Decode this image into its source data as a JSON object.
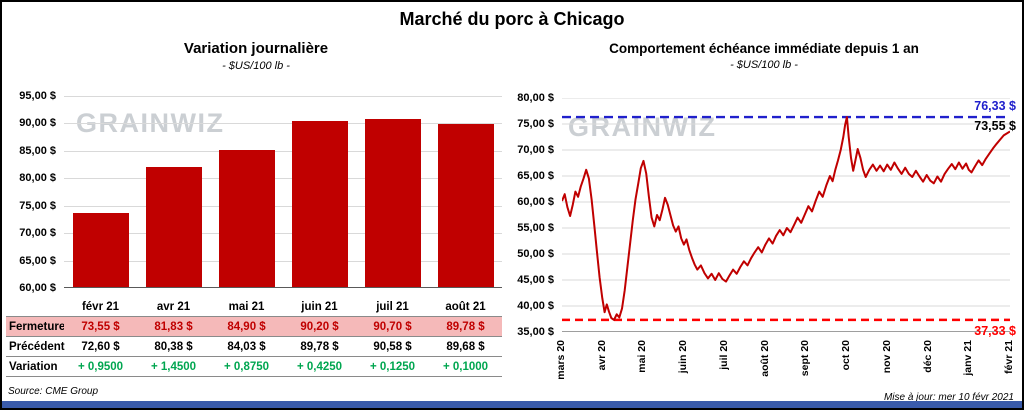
{
  "page": {
    "title": "Marché du porc à Chicago",
    "source": "Source: CME Group",
    "updated": "Mise à jour: mer 10 févr 2021",
    "watermark": "GRAINWIZ"
  },
  "colors": {
    "series_red": "#C00000",
    "max_blue": "#2020CC",
    "min_red": "#FF0000",
    "variation_green": "#00A650",
    "fermeture_pink": "#F5B9B9",
    "footer_blue": "#3A5BAB",
    "watermark_gray": "#CBCFD3"
  },
  "chart_data": [
    {
      "type": "bar",
      "title": "Variation  journalière",
      "subtitle": "- $US/100 lb -",
      "categories": [
        "févr 21",
        "avr 21",
        "mai 21",
        "juin 21",
        "juil 21",
        "août 21"
      ],
      "values": [
        73.55,
        81.83,
        84.9,
        90.2,
        90.7,
        89.78
      ],
      "ylim": [
        60,
        95
      ],
      "ytick_step": 5,
      "ytick_labels": [
        "95,00 $",
        "90,00 $",
        "85,00 $",
        "80,00 $",
        "75,00 $",
        "70,00 $",
        "65,00 $",
        "60,00 $"
      ],
      "grid": true,
      "legend": false,
      "table": {
        "rows": [
          {
            "label": "Fermeture",
            "style": "fermeture",
            "values": [
              "73,55 $",
              "81,83 $",
              "84,90 $",
              "90,20 $",
              "90,70 $",
              "89,78 $"
            ]
          },
          {
            "label": "Précédent",
            "style": "precedent",
            "values": [
              "72,60 $",
              "80,38 $",
              "84,03 $",
              "89,78 $",
              "90,58 $",
              "89,68 $"
            ]
          },
          {
            "label": "Variation",
            "style": "variation",
            "values": [
              "+ 0,9500",
              "+ 1,4500",
              "+ 0,8750",
              "+ 0,4250",
              "+ 0,1250",
              "+ 0,1000"
            ]
          }
        ]
      }
    },
    {
      "type": "line",
      "title": "Comportement  échéance  immédiate  depuis 1 an",
      "subtitle": "- $US/100 lb -",
      "x_labels": [
        "mars 20",
        "avr 20",
        "mai 20",
        "juin 20",
        "juil 20",
        "août 20",
        "sept 20",
        "oct 20",
        "nov 20",
        "déc 20",
        "janv 21",
        "févr 21"
      ],
      "ylim": [
        35,
        80
      ],
      "ytick_step": 5,
      "ytick_labels": [
        "80,00 $",
        "75,00 $",
        "70,00 $",
        "65,00 $",
        "60,00 $",
        "55,00 $",
        "50,00 $",
        "45,00 $",
        "40,00 $",
        "35,00 $"
      ],
      "grid": true,
      "legend": false,
      "max_ref": {
        "value": 76.33,
        "label": "76,33 $"
      },
      "min_ref": {
        "value": 37.33,
        "label": "37,33 $"
      },
      "last": {
        "value": 73.55,
        "label": "73,55 $"
      },
      "points": [
        [
          0.0,
          60.2
        ],
        [
          0.006,
          61.5
        ],
        [
          0.012,
          59.0
        ],
        [
          0.018,
          57.3
        ],
        [
          0.024,
          59.5
        ],
        [
          0.03,
          62.0
        ],
        [
          0.036,
          61.0
        ],
        [
          0.042,
          63.0
        ],
        [
          0.048,
          64.5
        ],
        [
          0.054,
          66.2
        ],
        [
          0.06,
          64.5
        ],
        [
          0.066,
          60.5
        ],
        [
          0.072,
          55.5
        ],
        [
          0.078,
          50.5
        ],
        [
          0.084,
          45.5
        ],
        [
          0.09,
          41.5
        ],
        [
          0.095,
          38.8
        ],
        [
          0.1,
          40.3
        ],
        [
          0.105,
          38.9
        ],
        [
          0.11,
          37.7
        ],
        [
          0.116,
          37.33
        ],
        [
          0.122,
          38.4
        ],
        [
          0.128,
          37.8
        ],
        [
          0.134,
          39.5
        ],
        [
          0.14,
          43.0
        ],
        [
          0.146,
          47.5
        ],
        [
          0.152,
          52.0
        ],
        [
          0.158,
          56.5
        ],
        [
          0.164,
          60.5
        ],
        [
          0.17,
          63.5
        ],
        [
          0.176,
          66.5
        ],
        [
          0.182,
          67.9
        ],
        [
          0.188,
          65.5
        ],
        [
          0.194,
          61.0
        ],
        [
          0.2,
          57.0
        ],
        [
          0.206,
          55.3
        ],
        [
          0.212,
          57.5
        ],
        [
          0.218,
          56.5
        ],
        [
          0.224,
          58.5
        ],
        [
          0.23,
          60.8
        ],
        [
          0.236,
          59.5
        ],
        [
          0.242,
          57.5
        ],
        [
          0.248,
          55.5
        ],
        [
          0.254,
          54.3
        ],
        [
          0.26,
          55.3
        ],
        [
          0.266,
          53.0
        ],
        [
          0.272,
          51.8
        ],
        [
          0.278,
          52.8
        ],
        [
          0.284,
          50.8
        ],
        [
          0.29,
          49.3
        ],
        [
          0.296,
          48.0
        ],
        [
          0.302,
          47.0
        ],
        [
          0.31,
          47.8
        ],
        [
          0.318,
          46.3
        ],
        [
          0.326,
          45.3
        ],
        [
          0.334,
          46.2
        ],
        [
          0.342,
          45.0
        ],
        [
          0.35,
          46.3
        ],
        [
          0.358,
          45.2
        ],
        [
          0.366,
          44.7
        ],
        [
          0.374,
          45.9
        ],
        [
          0.382,
          47.0
        ],
        [
          0.39,
          46.2
        ],
        [
          0.398,
          47.5
        ],
        [
          0.406,
          48.6
        ],
        [
          0.414,
          47.8
        ],
        [
          0.422,
          49.2
        ],
        [
          0.43,
          50.3
        ],
        [
          0.438,
          51.3
        ],
        [
          0.446,
          50.3
        ],
        [
          0.454,
          51.8
        ],
        [
          0.462,
          53.0
        ],
        [
          0.47,
          52.0
        ],
        [
          0.478,
          53.5
        ],
        [
          0.486,
          54.6
        ],
        [
          0.494,
          53.6
        ],
        [
          0.502,
          55.0
        ],
        [
          0.51,
          54.2
        ],
        [
          0.518,
          55.6
        ],
        [
          0.526,
          57.0
        ],
        [
          0.534,
          56.0
        ],
        [
          0.542,
          57.6
        ],
        [
          0.55,
          59.2
        ],
        [
          0.558,
          58.2
        ],
        [
          0.566,
          60.2
        ],
        [
          0.574,
          62.0
        ],
        [
          0.582,
          61.0
        ],
        [
          0.59,
          63.2
        ],
        [
          0.598,
          65.0
        ],
        [
          0.604,
          64.0
        ],
        [
          0.61,
          66.2
        ],
        [
          0.616,
          68.0
        ],
        [
          0.622,
          70.0
        ],
        [
          0.628,
          72.5
        ],
        [
          0.632,
          74.8
        ],
        [
          0.636,
          76.33
        ],
        [
          0.64,
          72.5
        ],
        [
          0.645,
          68.5
        ],
        [
          0.65,
          66.0
        ],
        [
          0.655,
          68.0
        ],
        [
          0.66,
          70.2
        ],
        [
          0.666,
          68.5
        ],
        [
          0.672,
          66.2
        ],
        [
          0.678,
          64.8
        ],
        [
          0.686,
          66.2
        ],
        [
          0.694,
          67.2
        ],
        [
          0.702,
          66.0
        ],
        [
          0.71,
          67.0
        ],
        [
          0.718,
          65.9
        ],
        [
          0.726,
          67.2
        ],
        [
          0.734,
          66.2
        ],
        [
          0.742,
          67.6
        ],
        [
          0.75,
          66.4
        ],
        [
          0.758,
          65.4
        ],
        [
          0.766,
          66.6
        ],
        [
          0.774,
          65.4
        ],
        [
          0.782,
          64.8
        ],
        [
          0.79,
          66.0
        ],
        [
          0.798,
          64.9
        ],
        [
          0.806,
          63.9
        ],
        [
          0.814,
          65.2
        ],
        [
          0.822,
          64.1
        ],
        [
          0.83,
          63.6
        ],
        [
          0.838,
          64.9
        ],
        [
          0.846,
          63.9
        ],
        [
          0.854,
          65.4
        ],
        [
          0.862,
          66.4
        ],
        [
          0.87,
          67.3
        ],
        [
          0.878,
          66.3
        ],
        [
          0.886,
          67.6
        ],
        [
          0.894,
          66.4
        ],
        [
          0.902,
          67.4
        ],
        [
          0.908,
          66.2
        ],
        [
          0.914,
          65.7
        ],
        [
          0.922,
          66.9
        ],
        [
          0.93,
          68.0
        ],
        [
          0.938,
          67.1
        ],
        [
          0.946,
          68.3
        ],
        [
          0.954,
          69.3
        ],
        [
          0.962,
          70.3
        ],
        [
          0.97,
          71.2
        ],
        [
          0.978,
          72.0
        ],
        [
          0.986,
          72.8
        ],
        [
          1.0,
          73.55
        ]
      ]
    }
  ]
}
